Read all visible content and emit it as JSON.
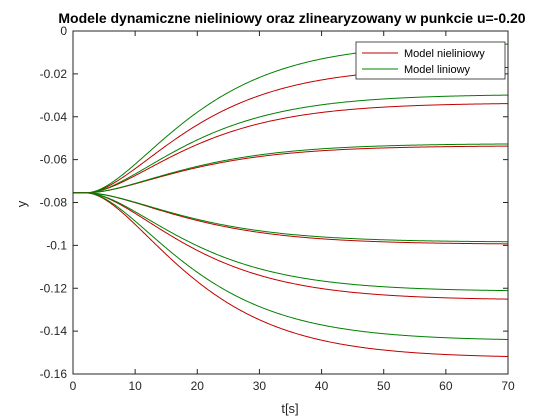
{
  "chart_data": {
    "type": "line",
    "title": "Modele dynamiczne nieliniowy oraz zlinearyzowany w punkcie u=-0.20",
    "xlabel": "t[s]",
    "ylabel": "y",
    "xlim": [
      0,
      70
    ],
    "ylim": [
      -0.16,
      0
    ],
    "xticks": [
      0,
      10,
      20,
      30,
      40,
      50,
      60,
      70
    ],
    "yticks": [
      0,
      -0.02,
      -0.04,
      -0.06,
      -0.08,
      -0.1,
      -0.12,
      -0.14,
      -0.16
    ],
    "xtick_labels": [
      "0",
      "10",
      "20",
      "30",
      "40",
      "50",
      "60",
      "70"
    ],
    "ytick_labels": [
      "0",
      "-0.02",
      "-0.04",
      "-0.06",
      "-0.08",
      "-0.1",
      "-0.12",
      "-0.14",
      "-0.16"
    ],
    "grid": false,
    "legend_position": "top-right",
    "legend": [
      {
        "name": "Model nieliniowy",
        "color": "#c00000"
      },
      {
        "name": "Model liniowy",
        "color": "#008000"
      }
    ],
    "initial_value": -0.0755,
    "step_time": 2,
    "time_constant": 10,
    "series": [
      {
        "model": "Model nieliniowy",
        "color": "#c00000",
        "final": -0.0165
      },
      {
        "model": "Model liniowy",
        "color": "#008000",
        "final": -0.0055
      },
      {
        "model": "Model nieliniowy",
        "color": "#c00000",
        "final": -0.0335
      },
      {
        "model": "Model liniowy",
        "color": "#008000",
        "final": -0.0295
      },
      {
        "model": "Model nieliniowy",
        "color": "#c00000",
        "final": -0.0535
      },
      {
        "model": "Model liniowy",
        "color": "#008000",
        "final": -0.0525
      },
      {
        "model": "Model nieliniowy",
        "color": "#c00000",
        "final": -0.0995
      },
      {
        "model": "Model liniowy",
        "color": "#008000",
        "final": -0.0985
      },
      {
        "model": "Model nieliniowy",
        "color": "#c00000",
        "final": -0.1255
      },
      {
        "model": "Model liniowy",
        "color": "#008000",
        "final": -0.1215
      },
      {
        "model": "Model nieliniowy",
        "color": "#c00000",
        "final": -0.1525
      },
      {
        "model": "Model liniowy",
        "color": "#008000",
        "final": -0.1445
      }
    ]
  }
}
